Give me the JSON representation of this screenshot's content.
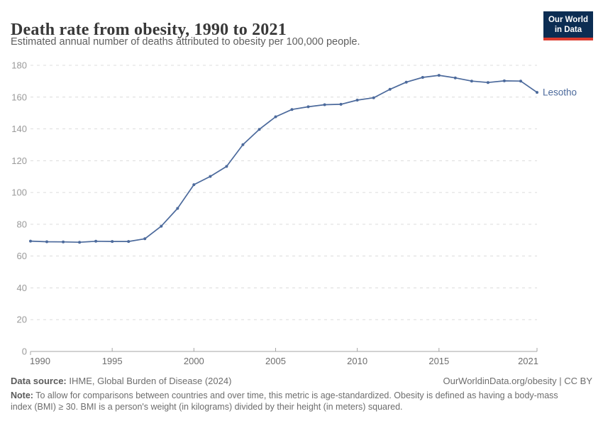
{
  "header": {
    "title": "Death rate from obesity, 1990 to 2021",
    "subtitle": "Estimated annual number of deaths attributed to obesity per 100,000 people."
  },
  "logo": {
    "line1": "Our World",
    "line2": "in Data",
    "bg_color": "#0c2d53",
    "bar_color": "#dc3a2e"
  },
  "chart_data": {
    "type": "line",
    "title": "Death rate from obesity, 1990 to 2021",
    "xlabel": "",
    "ylabel": "",
    "ylim": [
      0,
      180
    ],
    "yticks": [
      0,
      20,
      40,
      60,
      80,
      100,
      120,
      140,
      160,
      180
    ],
    "xticks": [
      1990,
      1995,
      2000,
      2005,
      2010,
      2015,
      2021
    ],
    "grid": "horizontal-dashed",
    "legend": "end-of-line-label",
    "x": [
      1990,
      1991,
      1992,
      1993,
      1994,
      1995,
      1996,
      1997,
      1998,
      1999,
      2000,
      2001,
      2002,
      2003,
      2004,
      2005,
      2006,
      2007,
      2008,
      2009,
      2010,
      2011,
      2012,
      2013,
      2014,
      2015,
      2016,
      2017,
      2018,
      2019,
      2020,
      2021
    ],
    "series": [
      {
        "name": "Lesotho",
        "color": "#4C6A9C",
        "values": [
          69.4,
          69.0,
          68.9,
          68.7,
          69.3,
          69.2,
          69.2,
          70.9,
          78.8,
          90.0,
          104.9,
          110.1,
          116.4,
          130.1,
          139.7,
          147.6,
          152.2,
          153.9,
          155.2,
          155.5,
          158.1,
          159.6,
          164.9,
          169.4,
          172.4,
          173.7,
          172.1,
          170.1,
          169.2,
          170.2,
          170.1,
          163.0
        ]
      }
    ],
    "colors": {
      "line": "#4C6A9C",
      "grid": "#dcdcdc",
      "axis": "#a5a5a5",
      "y_tick_label": "#9a9a9a",
      "x_tick_label": "#6e6e6e"
    }
  },
  "footer": {
    "source_label": "Data source:",
    "source_text": " IHME, Global Burden of Disease (2024)",
    "link_text": "OurWorldinData.org/obesity | CC BY",
    "note_label": "Note:",
    "note_text": " To allow for comparisons between countries and over time, this metric is age-standardized. Obesity is defined as having a body-mass index (BMI) ≥ 30. BMI is a person's weight (in kilograms) divided by their height (in meters) squared."
  }
}
